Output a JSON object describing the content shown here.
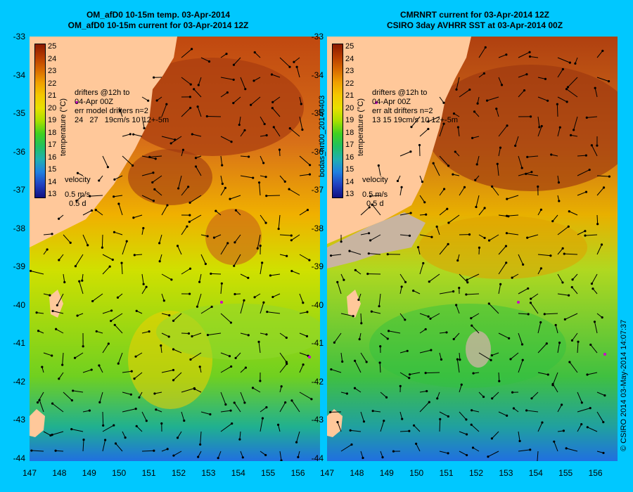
{
  "left_panel": {
    "title_line1": "OM_afD0 10-15m temp. 03-Apr-2014",
    "title_line2": "OM_afD0 10-15m current for 03-Apr-2014 12Z",
    "drifters_line1": "drifters @12h to",
    "drifters_line2": "04-Apr 00Z",
    "drifters_line3": "err model drifters n=2",
    "drifters_line4": "24   27   19cm/s 10 12+-5m",
    "velocity_label": "velocity",
    "velocity_scale": "0.5 m/s",
    "velocity_time": "0.5 d"
  },
  "right_panel": {
    "title_line1": "CMRNRT current for 03-Apr-2014 12Z",
    "title_line2": "CSIRO 3day AVHRR SST at 03-Apr-2014 00Z",
    "drifters_line1": "drifters @12h to",
    "drifters_line2": "04-Apr 00Z",
    "drifters_line3": "err alt drifters n=2",
    "drifters_line4": "13 15 19cm/s 10 12+-5m",
    "velocity_label": "velocity",
    "velocity_scale": "0.5 m/s",
    "velocity_time": "0.5 d"
  },
  "colorbar": {
    "ticks": [
      "25",
      "24",
      "23",
      "22",
      "21",
      "20",
      "19",
      "18",
      "17",
      "16",
      "15",
      "14",
      "13"
    ],
    "label": "temperature (°C)",
    "colors": [
      "#8b1a00",
      "#b83c00",
      "#d86a00",
      "#f0a000",
      "#f4c800",
      "#e8e000",
      "#a8e000",
      "#40d020",
      "#20c060",
      "#20b0b0",
      "#2080e0",
      "#2040c0",
      "#101080"
    ]
  },
  "axes": {
    "lat_ticks": [
      "-33",
      "-34",
      "-35",
      "-36",
      "-37",
      "-38",
      "-39",
      "-40",
      "-41",
      "-42",
      "-43",
      "-44"
    ],
    "lon_ticks": [
      "147",
      "148",
      "149",
      "150",
      "151",
      "152",
      "153",
      "154",
      "155",
      "156"
    ]
  },
  "side_text": {
    "vertical_id": "bodas_nrt00_20140403",
    "copyright": "© CSIRO 2014   03-May-2014 14:07:37"
  },
  "colors": {
    "background": "#00c8ff",
    "land": "#ffc89a",
    "warm": "#b84a10",
    "cool": "#30c040",
    "cloud": "#c8b4a0"
  }
}
